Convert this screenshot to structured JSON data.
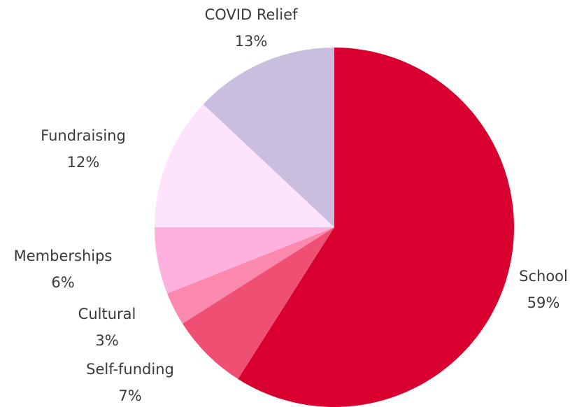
{
  "chart_data": {
    "type": "pie",
    "title": "",
    "start_angle_deg": 0,
    "direction": "clockwise",
    "slices": [
      {
        "label": "School",
        "value": 59,
        "value_label": "59%",
        "color": "#d90030"
      },
      {
        "label": "Self-funding",
        "value": 7,
        "value_label": "7%",
        "color": "#ef4f73"
      },
      {
        "label": "Cultural",
        "value": 3,
        "value_label": "3%",
        "color": "#fb88ad"
      },
      {
        "label": "Memberships",
        "value": 6,
        "value_label": "6%",
        "color": "#fdb1dc"
      },
      {
        "label": "Fundraising",
        "value": 12,
        "value_label": "12%",
        "color": "#fde3fb"
      },
      {
        "label": "COVID Relief",
        "value": 13,
        "value_label": "13%",
        "color": "#c9bedd"
      }
    ]
  }
}
